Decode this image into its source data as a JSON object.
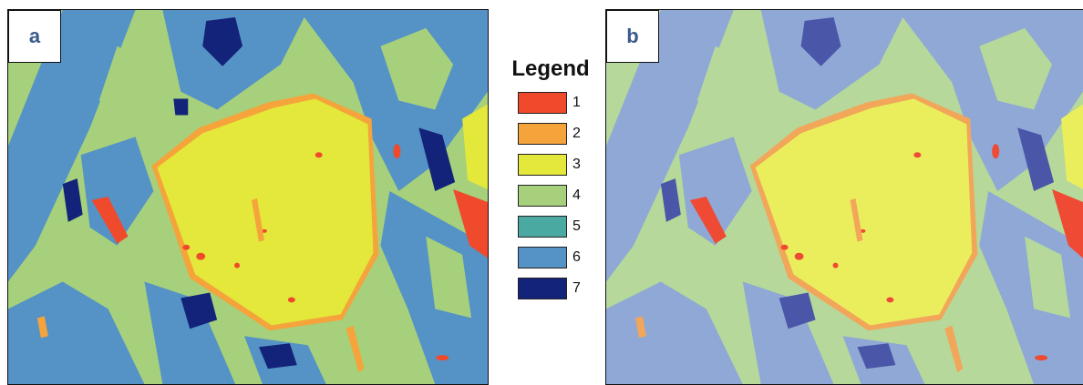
{
  "panels": [
    {
      "label": "a"
    },
    {
      "label": "b"
    }
  ],
  "legend": {
    "title": "Legend",
    "items": [
      {
        "label": "1",
        "color": "#f04a2c"
      },
      {
        "label": "2",
        "color": "#f5a43c"
      },
      {
        "label": "3",
        "color": "#e3e83a"
      },
      {
        "label": "4",
        "color": "#a6d07c"
      },
      {
        "label": "5",
        "color": "#4aaaa2"
      },
      {
        "label": "6",
        "color": "#5592c6"
      },
      {
        "label": "7",
        "color": "#14237a"
      }
    ]
  },
  "palette_b": {
    "1": "#ee4a34",
    "2": "#f2a65a",
    "3": "#ebee5c",
    "4": "#b6d89a",
    "6": "#8fa8d6",
    "7": "#4a56a8"
  }
}
